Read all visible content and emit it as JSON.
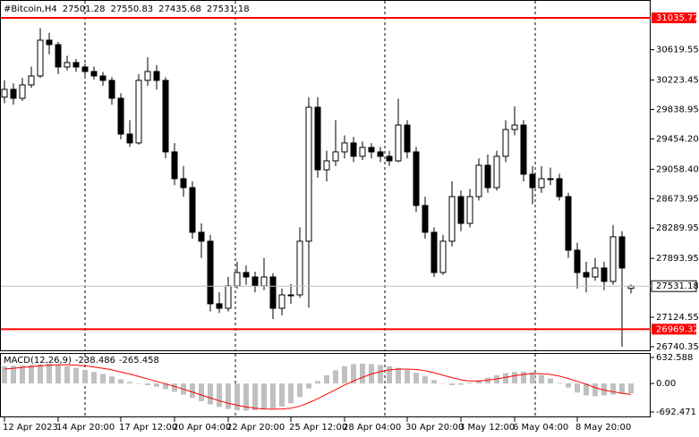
{
  "chart_data": [
    {
      "type": "candlestick",
      "title": "#Bitcoin,H4",
      "categories": [
        "12 Apr 2023",
        null,
        null,
        null,
        null,
        null,
        "14 Apr 20:00",
        null,
        null,
        null,
        null,
        null,
        null,
        "17 Apr 12:00",
        null,
        null,
        null,
        null,
        null,
        "20 Apr 04:00",
        null,
        null,
        null,
        null,
        null,
        "22 Apr 20:00",
        null,
        null,
        null,
        null,
        null,
        null,
        "25 Apr 12:00",
        null,
        null,
        null,
        null,
        null,
        "28 Apr 04:00",
        null,
        null,
        null,
        null,
        null,
        null,
        "30 Apr 20:00",
        null,
        null,
        null,
        null,
        null,
        "3 May 12:00",
        null,
        null,
        null,
        null,
        null,
        "6 May 04:00",
        null,
        null,
        null,
        null,
        null,
        null,
        "8 May 20:00",
        null,
        null,
        null,
        null,
        null,
        null
      ],
      "open": [
        30000,
        30102,
        29985,
        30160,
        30277,
        30744,
        30686,
        30394,
        30452,
        30394,
        30335,
        30277,
        30219,
        29985,
        29518,
        29402,
        30219,
        30335,
        30219,
        29285,
        28935,
        28818,
        28235,
        28118,
        27301,
        27242,
        27534,
        27709,
        27651,
        27534,
        27651,
        27242,
        27417,
        27417,
        28118,
        29868,
        29051,
        29168,
        29285,
        29402,
        29227,
        29343,
        29285,
        29227,
        29168,
        29635,
        29285,
        28585,
        28235,
        27709,
        28118,
        28701,
        28351,
        28701,
        29110,
        28818,
        29227,
        29577,
        29635,
        28993,
        28818,
        28935,
        28935,
        28701,
        28001,
        27709,
        27651,
        27768,
        27593,
        28176,
        27501.28
      ],
      "high": [
        30220,
        30180,
        30250,
        30400,
        30900,
        30840,
        30720,
        30540,
        30500,
        30440,
        30400,
        30330,
        30260,
        30050,
        29700,
        30300,
        30520,
        30420,
        30260,
        29400,
        29100,
        28900,
        28350,
        28200,
        27450,
        27650,
        27850,
        27800,
        27720,
        27900,
        27700,
        27500,
        27560,
        28300,
        30000,
        30000,
        29300,
        29700,
        29500,
        29480,
        29420,
        29400,
        29350,
        29300,
        29980,
        29700,
        29350,
        28700,
        28300,
        28200,
        28900,
        28780,
        28800,
        29200,
        29250,
        29300,
        29700,
        29880,
        29700,
        29100,
        29100,
        29080,
        29000,
        28750,
        28100,
        27850,
        27900,
        27850,
        28330,
        28250,
        27550.83
      ],
      "low": [
        29920,
        29900,
        29950,
        30120,
        30250,
        30560,
        30300,
        30350,
        30330,
        30280,
        30230,
        30150,
        29900,
        29450,
        29350,
        29380,
        30150,
        30100,
        29200,
        28850,
        28700,
        28150,
        27900,
        27200,
        27180,
        27200,
        27500,
        27550,
        27450,
        27480,
        27100,
        27150,
        27300,
        27380,
        27250,
        28950,
        28900,
        29100,
        29200,
        29150,
        29180,
        29200,
        29150,
        29100,
        29150,
        29200,
        28500,
        28150,
        27650,
        27680,
        28050,
        28250,
        28300,
        28650,
        28750,
        28780,
        29150,
        29500,
        28900,
        28600,
        28750,
        28850,
        28650,
        27900,
        27500,
        27450,
        27600,
        27480,
        27550,
        26740,
        27435.68
      ],
      "close": [
        30102,
        29985,
        30160,
        30277,
        30744,
        30686,
        30394,
        30452,
        30394,
        30335,
        30277,
        30219,
        29985,
        29518,
        29402,
        30219,
        30335,
        30219,
        29285,
        28935,
        28818,
        28235,
        28118,
        27301,
        27242,
        27534,
        27709,
        27651,
        27534,
        27651,
        27242,
        27417,
        27417,
        28118,
        29868,
        29051,
        29168,
        29285,
        29402,
        29227,
        29343,
        29285,
        29227,
        29168,
        29635,
        29285,
        28585,
        28235,
        27709,
        28118,
        28701,
        28351,
        28701,
        29110,
        28818,
        29227,
        29577,
        29635,
        28993,
        28818,
        28935,
        28935,
        28701,
        28001,
        27709,
        27651,
        27768,
        27593,
        28176,
        27768,
        27531.18
      ],
      "up_color": "#ffffff",
      "down_color": "#000000",
      "wick_color": "#000000",
      "ylim": [
        26693,
        31269
      ],
      "yticks": [
        30619.55,
        30223.45,
        29838.95,
        {
          "value": 29454.2,
          "label": "29454.20"
        },
        {
          "value": 29058.4,
          "label": "29058.40"
        },
        28673.95,
        28289.95,
        27893.95,
        27124.55,
        26740.35
      ],
      "levels": [
        31035.77,
        26969.32
      ],
      "level_color": "#ff0000"
    },
    {
      "type": "macd",
      "title": "MACD(12,26,9)",
      "series": [
        {
          "color": "#c0c0c0",
          "values": [
            420,
            430,
            440,
            450,
            470,
            480,
            460,
            420,
            380,
            330,
            280,
            230,
            170,
            100,
            40,
            0,
            -40,
            -80,
            -140,
            -200,
            -270,
            -350,
            -430,
            -510,
            -570,
            -620,
            -650,
            -660,
            -650,
            -630,
            -610,
            -560,
            -480,
            -330,
            -120,
            60,
            200,
            320,
            420,
            470,
            480,
            470,
            450,
            420,
            380,
            330,
            260,
            180,
            80,
            0,
            -40,
            -30,
            20,
            80,
            140,
            200,
            250,
            280,
            290,
            270,
            210,
            120,
            20,
            -100,
            -220,
            -290,
            -310,
            -290,
            -270,
            -250,
            -238.486
          ]
        },
        {
          "color": "#ff0000",
          "values": [
            350,
            370,
            390,
            410,
            430,
            445,
            455,
            455,
            445,
            430,
            400,
            370,
            330,
            280,
            230,
            170,
            110,
            50,
            -10,
            -70,
            -140,
            -210,
            -280,
            -350,
            -420,
            -480,
            -530,
            -570,
            -600,
            -620,
            -625,
            -620,
            -600,
            -550,
            -470,
            -370,
            -260,
            -150,
            -40,
            60,
            150,
            230,
            290,
            330,
            350,
            350,
            340,
            310,
            260,
            200,
            140,
            90,
            60,
            60,
            80,
            110,
            150,
            190,
            220,
            240,
            240,
            220,
            180,
            120,
            50,
            -20,
            -100,
            -160,
            -200,
            -240,
            -265.458
          ]
        }
      ],
      "ylim": [
        -823,
        741
      ],
      "yticks": [
        632.588,
        {
          "value": 0,
          "label": "0.00"
        },
        -692.471
      ]
    }
  ]
}
